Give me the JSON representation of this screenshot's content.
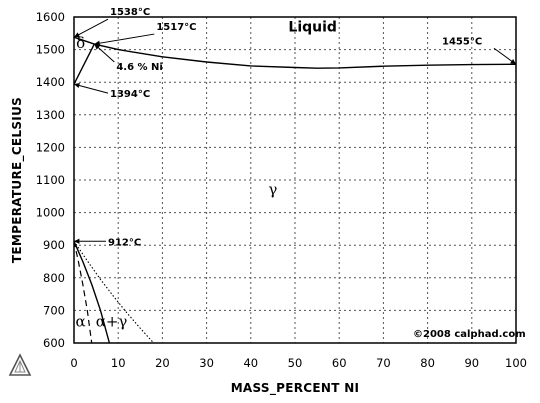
{
  "chart_data": {
    "type": "line",
    "xlabel": "MASS_PERCENT NI",
    "ylabel": "TEMPERATURE_CELSIUS",
    "xlim": [
      0,
      100
    ],
    "ylim": [
      600,
      1600
    ],
    "x_ticks": [
      "0",
      "10",
      "20",
      "30",
      "40",
      "50",
      "60",
      "70",
      "80",
      "90",
      "100"
    ],
    "y_ticks": [
      "600",
      "700",
      "800",
      "900",
      "1000",
      "1100",
      "1200",
      "1300",
      "1400",
      "1500",
      "1600"
    ],
    "grid": true,
    "series": [
      {
        "style": "solid",
        "x": [
          0,
          4.6
        ],
        "y": [
          1538,
          1517
        ]
      },
      {
        "style": "solid",
        "x": [
          0,
          4.6
        ],
        "y": [
          1394,
          1517
        ]
      },
      {
        "style": "solid",
        "x": [
          4.6,
          10,
          20,
          30,
          40,
          50,
          55,
          60,
          70,
          80,
          90,
          100
        ],
        "y": [
          1517,
          1500,
          1478,
          1462,
          1450,
          1445,
          1443,
          1444,
          1449,
          1452,
          1454,
          1455
        ]
      },
      {
        "style": "solid",
        "x": [
          0,
          2,
          4,
          6,
          8
        ],
        "y": [
          912,
          850,
          780,
          700,
          600
        ]
      },
      {
        "style": "dashed",
        "x": [
          0,
          1,
          2,
          3,
          4
        ],
        "y": [
          912,
          850,
          780,
          700,
          600
        ]
      },
      {
        "style": "dotted",
        "x": [
          0,
          3,
          6,
          9,
          12,
          15,
          18
        ],
        "y": [
          912,
          852,
          795,
          742,
          692,
          645,
          600
        ]
      }
    ],
    "annotations": [
      {
        "text": "1538°C",
        "x": 0,
        "y": 1538
      },
      {
        "text": "1517°C",
        "x": 4.6,
        "y": 1517
      },
      {
        "text": "4.6 % Ni",
        "x": 4.6,
        "y": 1517
      },
      {
        "text": "1394°C",
        "x": 0,
        "y": 1394
      },
      {
        "text": "1455°C",
        "x": 100,
        "y": 1455
      },
      {
        "text": "912°C",
        "x": 0,
        "y": 912
      }
    ],
    "regions": [
      {
        "text": "Liquid",
        "x": 54,
        "y": 1555
      },
      {
        "text": "δ",
        "x": 1.5,
        "y": 1505
      },
      {
        "text": "γ",
        "x": 45,
        "y": 1055
      },
      {
        "text": "α",
        "x": 1.5,
        "y": 650
      },
      {
        "text": "α+γ",
        "x": 8.5,
        "y": 650
      }
    ],
    "copyright": "©2008 calphad.com"
  },
  "logo_icon": "triangle-logo-icon"
}
